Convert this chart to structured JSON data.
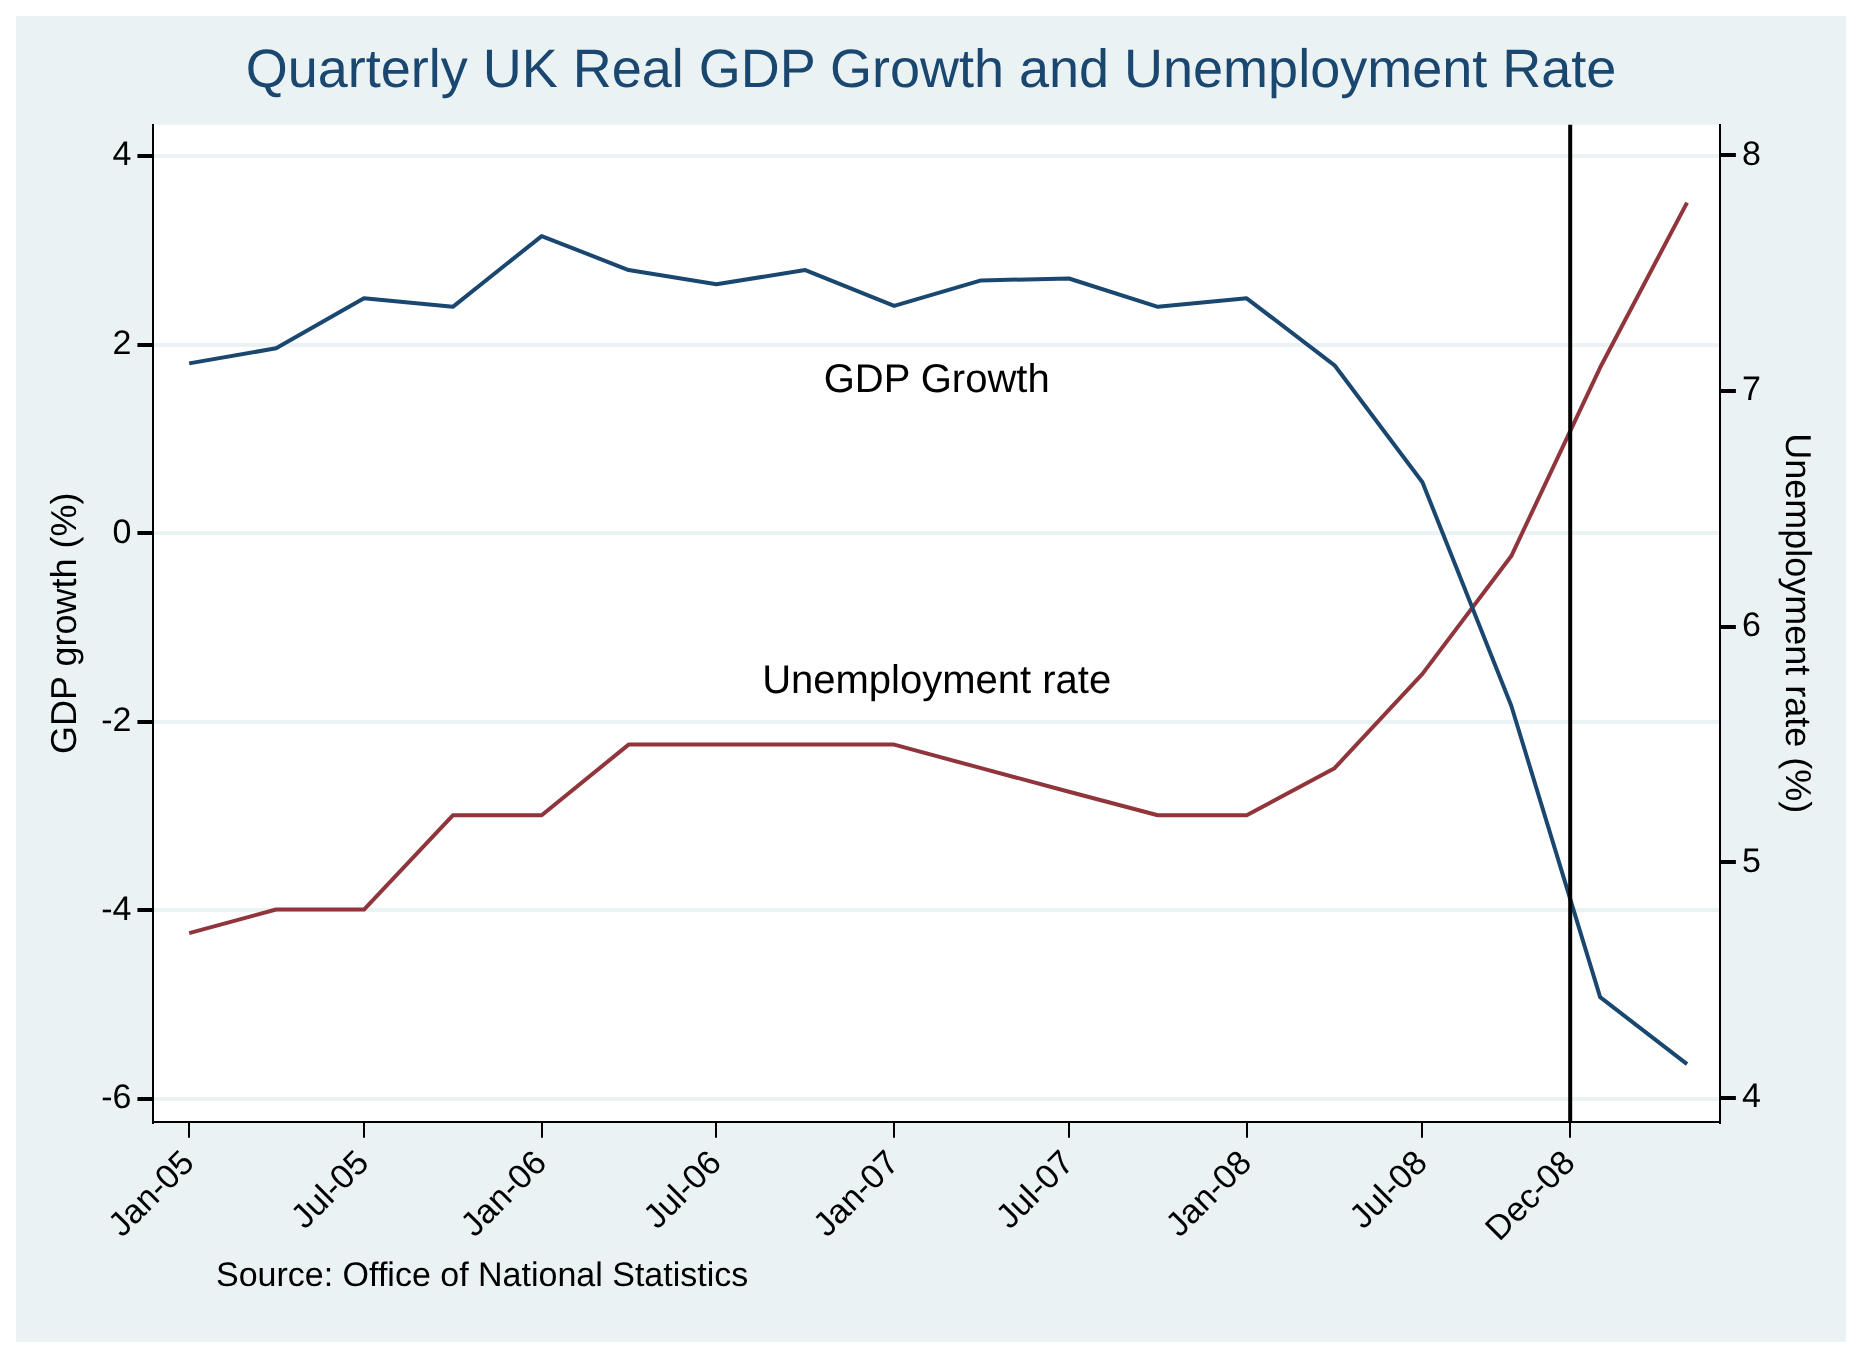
{
  "chart_data": {
    "type": "line",
    "title": "Quarterly UK Real GDP Growth and Unemployment Rate",
    "ylabel": "GDP growth (%)",
    "y2label": "Unemployment rate (%)",
    "x": [
      "2005-01",
      "2005-04",
      "2005-07",
      "2005-10",
      "2006-01",
      "2006-04",
      "2006-07",
      "2006-10",
      "2007-01",
      "2007-04",
      "2007-07",
      "2007-10",
      "2008-01",
      "2008-04",
      "2008-07",
      "2008-10",
      "2009-01",
      "2009-04"
    ],
    "series": [
      {
        "name": "GDP Growth",
        "color": "#1a476f",
        "values": [
          1.8,
          1.96,
          2.49,
          2.4,
          3.15,
          2.79,
          2.64,
          2.79,
          2.41,
          2.68,
          2.7,
          2.4,
          2.49,
          1.78,
          0.54,
          -1.83,
          -4.92,
          -5.63
        ]
      },
      {
        "name": "Unemployment rate",
        "color": "#90353b",
        "axis": "y2",
        "values": [
          4.7,
          4.8,
          4.8,
          5.2,
          5.2,
          5.5,
          5.5,
          5.5,
          5.5,
          5.4,
          5.3,
          5.2,
          5.2,
          5.4,
          5.8,
          6.3,
          7.1,
          7.8
        ]
      }
    ],
    "xlim": [
      "2004-11-25",
      "2009-05-05"
    ],
    "xticks": [
      {
        "value": "2005-01-01",
        "label": "Jan-05"
      },
      {
        "value": "2005-07-01",
        "label": "Jul-05"
      },
      {
        "value": "2006-01-01",
        "label": "Jan-06"
      },
      {
        "value": "2006-07-01",
        "label": "Jul-06"
      },
      {
        "value": "2007-01-01",
        "label": "Jan-07"
      },
      {
        "value": "2007-07-01",
        "label": "Jul-07"
      },
      {
        "value": "2008-01-01",
        "label": "Jan-08"
      },
      {
        "value": "2008-07-01",
        "label": "Jul-08"
      },
      {
        "value": "2008-12-01",
        "label": "Dec-08"
      }
    ],
    "ylim": [
      -6.24,
      4.33
    ],
    "yticks": [
      -6,
      -4,
      -2,
      0,
      2,
      4
    ],
    "y2lim": [
      3.9,
      8.13
    ],
    "y2ticks": [
      4,
      5,
      6,
      7,
      8
    ],
    "ref_lines": [
      {
        "axis": "x",
        "value": "2008-12-01",
        "color": "#000000"
      }
    ],
    "grid": "y",
    "legend": false,
    "marker": "none",
    "line_style": "solid",
    "annotations": [
      "Source: Office of National Statistics"
    ]
  }
}
